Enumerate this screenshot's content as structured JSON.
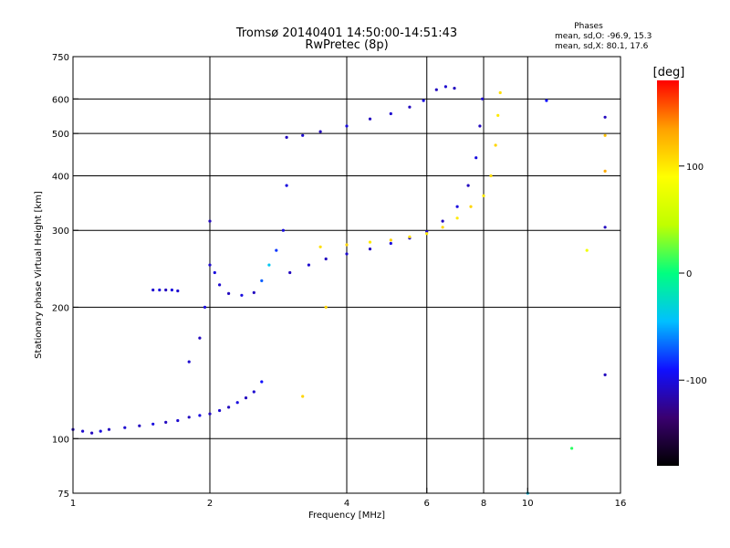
{
  "chart_data": {
    "type": "scatter",
    "title": "Tromsø 20140401 14:50:00-14:51:43",
    "subtitle": "RwPretec (8p)",
    "xlabel": "Frequency [MHz]",
    "ylabel": "Stationary phase Virtual Height [km]",
    "x_scale": "log2",
    "y_scale": "log",
    "xlim": [
      1,
      16
    ],
    "ylim": [
      75,
      750
    ],
    "x_ticks": [
      "1",
      "2",
      "4",
      "6",
      "8",
      "10",
      "16"
    ],
    "x_tick_values": [
      1,
      2,
      4,
      6,
      8,
      10,
      16
    ],
    "y_ticks": [
      "75",
      "100",
      "200",
      "300",
      "400",
      "500",
      "600",
      "750"
    ],
    "y_tick_values": [
      75,
      100,
      200,
      300,
      400,
      500,
      600,
      750
    ],
    "grid": true,
    "colorbar": {
      "label": "[deg]",
      "ticks": [
        "100",
        "0",
        "-100"
      ],
      "tick_values": [
        100,
        0,
        -100
      ],
      "range": [
        -180,
        180
      ],
      "colors": [
        "#000000",
        "#3a0070",
        "#1010ff",
        "#00c0ff",
        "#00ff80",
        "#c0ff00",
        "#ffff00",
        "#ffa000",
        "#ff0000"
      ]
    },
    "stats": {
      "heading": "Phases",
      "line_o": "mean, sd,O: -96.9, 15.3",
      "line_x": "mean, sd,X:  80.1, 17.6"
    },
    "series": [
      {
        "points": [
          [
            1.0,
            105,
            -110
          ],
          [
            1.05,
            104,
            -105
          ],
          [
            1.1,
            103,
            -110
          ],
          [
            1.15,
            104,
            -100
          ],
          [
            1.2,
            105,
            -110
          ],
          [
            1.3,
            106,
            -105
          ],
          [
            1.4,
            107,
            -110
          ],
          [
            1.5,
            108,
            -100
          ],
          [
            1.6,
            109,
            -110
          ],
          [
            1.7,
            110,
            -105
          ],
          [
            1.8,
            112,
            -110
          ],
          [
            1.9,
            113,
            -100
          ],
          [
            2.0,
            114,
            -110
          ],
          [
            2.1,
            116,
            -105
          ],
          [
            2.2,
            118,
            -110
          ],
          [
            2.3,
            121,
            -100
          ],
          [
            2.4,
            124,
            -110
          ],
          [
            2.5,
            128,
            -105
          ],
          [
            2.6,
            135,
            -90
          ]
        ]
      },
      {
        "points": [
          [
            1.5,
            219,
            -105
          ],
          [
            1.55,
            219,
            -100
          ],
          [
            1.6,
            219,
            -110
          ],
          [
            1.65,
            219,
            -100
          ],
          [
            1.7,
            218,
            -105
          ]
        ]
      },
      {
        "points": [
          [
            1.8,
            150,
            -105
          ],
          [
            1.9,
            170,
            -110
          ],
          [
            1.95,
            200,
            -100
          ],
          [
            2.0,
            250,
            -105
          ],
          [
            2.0,
            315,
            -110
          ],
          [
            2.05,
            240,
            -100
          ],
          [
            2.1,
            225,
            -105
          ],
          [
            2.2,
            215,
            -110
          ],
          [
            2.35,
            213,
            -100
          ],
          [
            2.5,
            216,
            -110
          ],
          [
            2.6,
            230,
            -70
          ],
          [
            2.7,
            250,
            -40
          ],
          [
            2.8,
            270,
            -80
          ],
          [
            2.9,
            300,
            -100
          ],
          [
            2.95,
            380,
            -100
          ]
        ]
      },
      {
        "points": [
          [
            2.95,
            490,
            -110
          ],
          [
            3.2,
            495,
            -105
          ],
          [
            3.5,
            505,
            -110
          ],
          [
            4.0,
            520,
            -100
          ],
          [
            4.5,
            540,
            -110
          ],
          [
            5.0,
            555,
            -105
          ],
          [
            5.5,
            575,
            -110
          ],
          [
            5.9,
            595,
            -100
          ]
        ]
      },
      {
        "points": [
          [
            3.0,
            240,
            -110
          ],
          [
            3.3,
            250,
            -105
          ],
          [
            3.6,
            258,
            -110
          ],
          [
            4.0,
            265,
            -105
          ],
          [
            4.5,
            272,
            -110
          ],
          [
            5.0,
            280,
            -100
          ],
          [
            5.5,
            288,
            -110
          ],
          [
            6.0,
            298,
            -105
          ],
          [
            6.5,
            315,
            -110
          ],
          [
            7.0,
            340,
            -100
          ],
          [
            7.4,
            380,
            -110
          ],
          [
            7.7,
            440,
            -100
          ],
          [
            7.85,
            520,
            -110
          ],
          [
            7.95,
            600,
            -105
          ]
        ]
      },
      {
        "points": [
          [
            3.5,
            275,
            105
          ],
          [
            4.0,
            278,
            110
          ],
          [
            4.5,
            282,
            100
          ],
          [
            5.0,
            285,
            110
          ],
          [
            5.5,
            290,
            105
          ],
          [
            6.0,
            295,
            100
          ],
          [
            6.5,
            305,
            110
          ],
          [
            7.0,
            320,
            100
          ],
          [
            7.5,
            340,
            110
          ],
          [
            8.0,
            360,
            100
          ],
          [
            8.3,
            400,
            105
          ],
          [
            8.5,
            470,
            110
          ],
          [
            8.6,
            550,
            100
          ],
          [
            8.7,
            620,
            105
          ]
        ]
      },
      {
        "points": [
          [
            6.3,
            630,
            -110
          ],
          [
            6.6,
            640,
            -105
          ],
          [
            6.9,
            635,
            -110
          ],
          [
            3.2,
            125,
            110
          ],
          [
            3.6,
            200,
            110
          ],
          [
            12.5,
            95,
            10
          ],
          [
            11.0,
            595,
            -90
          ],
          [
            13.5,
            270,
            80
          ],
          [
            14.8,
            305,
            -110
          ],
          [
            14.8,
            495,
            120
          ],
          [
            14.8,
            545,
            -110
          ],
          [
            14.8,
            410,
            130
          ],
          [
            14.8,
            140,
            -110
          ],
          [
            10.0,
            75,
            -40
          ]
        ]
      }
    ]
  }
}
